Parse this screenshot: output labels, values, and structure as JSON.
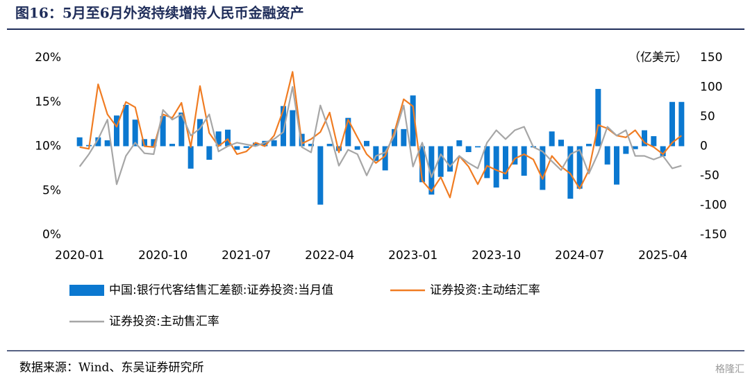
{
  "chart_data": {
    "type": "bar_line_combo",
    "title": "图16：5月至6月外资持续增持人民币金融资产",
    "y2_label": "（亿美元）",
    "source": "数据来源：Wind、东吴证券研究所",
    "watermark": "格隆汇",
    "categories": [
      "2020-01",
      null,
      null,
      null,
      null,
      null,
      null,
      null,
      null,
      "2020-10",
      null,
      null,
      null,
      null,
      null,
      null,
      null,
      null,
      "2021-07",
      null,
      null,
      null,
      null,
      null,
      null,
      null,
      null,
      "2022-04",
      null,
      null,
      null,
      null,
      null,
      null,
      null,
      null,
      "2023-01",
      null,
      null,
      null,
      null,
      null,
      null,
      null,
      null,
      "2023-10",
      null,
      null,
      null,
      null,
      null,
      null,
      null,
      null,
      "2024-07",
      null,
      null,
      null,
      null,
      null,
      null,
      null,
      null,
      "2025-04",
      null,
      null
    ],
    "ylim": [
      0,
      20
    ],
    "yticks": [
      {
        "value": 0,
        "label": "0%"
      },
      {
        "value": 5,
        "label": "5%"
      },
      {
        "value": 10,
        "label": "10%"
      },
      {
        "value": 15,
        "label": "15%"
      },
      {
        "value": 20,
        "label": "20%"
      }
    ],
    "y2lim": [
      -150,
      150
    ],
    "y2ticks": [
      -150,
      -100,
      -50,
      0,
      50,
      100,
      150
    ],
    "series": [
      {
        "name": "中国:银行代客结售汇差额:证券投资:当月值",
        "type": "bar",
        "axis": "y2",
        "color": "#0b78d0",
        "values": [
          15,
          2,
          15,
          10,
          52,
          70,
          45,
          12,
          12,
          51,
          4,
          57,
          -38,
          46,
          -23,
          25,
          28,
          -6,
          -3,
          6,
          9,
          10,
          68,
          61,
          21,
          4,
          -99,
          4,
          -8,
          48,
          -6,
          9,
          -25,
          -41,
          29,
          29,
          86,
          -61,
          -82,
          -52,
          -43,
          10,
          -10,
          -2,
          -54,
          -70,
          -56,
          -31,
          -50,
          -2,
          -74,
          25,
          11,
          -89,
          -72,
          4,
          97,
          -31,
          -65,
          -13,
          -5,
          27,
          17,
          -17,
          75,
          75
        ]
      },
      {
        "name": "证券投资:主动结汇率",
        "type": "line",
        "axis": "y",
        "color": "#f07c22",
        "values": [
          9.9,
          9.7,
          17.0,
          13.6,
          12.2,
          15.0,
          14.4,
          10.0,
          9.9,
          13.6,
          13.2,
          14.9,
          9.9,
          16.8,
          11.5,
          10.0,
          10.8,
          9.1,
          9.4,
          10.4,
          10.0,
          11.2,
          14.1,
          18.4,
          10.3,
          10.8,
          11.6,
          13.8,
          9.3,
          13.0,
          11.0,
          9.1,
          8.1,
          8.9,
          11.6,
          15.3,
          14.5,
          6.1,
          4.9,
          6.5,
          4.2,
          8.9,
          7.7,
          5.7,
          7.8,
          7.3,
          6.9,
          8.6,
          9.1,
          8.5,
          6.3,
          8.9,
          7.7,
          6.9,
          5.2,
          7.3,
          12.4,
          12.0,
          11.2,
          11.0,
          11.8,
          10.4,
          9.9,
          9.1,
          10.4,
          11.2
        ]
      },
      {
        "name": "证券投资:主动售汇率",
        "type": "line",
        "axis": "y",
        "color": "#a6a6a6",
        "values": [
          7.7,
          9.1,
          10.8,
          13.0,
          5.7,
          8.9,
          10.4,
          9.2,
          9.1,
          14.1,
          13.0,
          13.6,
          11.2,
          12.0,
          13.6,
          9.4,
          10.0,
          10.4,
          10.2,
          10.0,
          10.4,
          10.8,
          11.6,
          16.7,
          9.9,
          9.3,
          14.6,
          11.6,
          7.8,
          9.6,
          9.1,
          6.7,
          8.9,
          9.3,
          11.2,
          14.6,
          7.7,
          10.4,
          6.5,
          9.1,
          7.7,
          8.9,
          8.1,
          7.5,
          10.4,
          11.8,
          10.8,
          11.8,
          12.2,
          9.9,
          9.4,
          8.3,
          7.3,
          9.1,
          9.6,
          6.9,
          9.2,
          12.2,
          11.2,
          11.8,
          8.9,
          8.9,
          8.5,
          8.9,
          7.5,
          7.8
        ]
      }
    ]
  }
}
